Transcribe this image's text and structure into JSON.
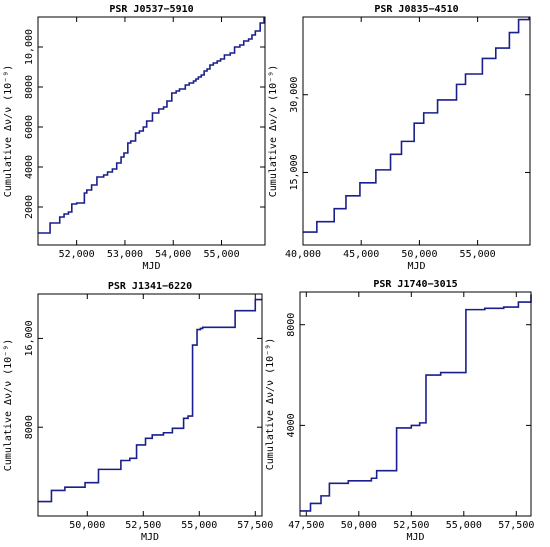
{
  "figure": {
    "line_color": "#1a1f8c"
  },
  "chart_data": [
    {
      "type": "line",
      "step": true,
      "title": "PSR J0537−5910",
      "xlabel": "MJD",
      "ylabel": "Cumulative Δν/ν (10⁻⁹)",
      "xlim": [
        51200,
        55900
      ],
      "ylim": [
        100,
        11500
      ],
      "xticks": [
        52000,
        53000,
        54000,
        55000
      ],
      "xtick_labels": [
        "52,000",
        "53,000",
        "54,000",
        "55,000"
      ],
      "yticks": [
        2000,
        4000,
        6000,
        8000,
        10000
      ],
      "ytick_labels": [
        "2000",
        "4000",
        "6000",
        "8000",
        "10,000"
      ],
      "x": [
        51290,
        51450,
        51650,
        51740,
        51830,
        51900,
        52000,
        52160,
        52210,
        52310,
        52420,
        52560,
        52640,
        52740,
        52830,
        52920,
        52980,
        53060,
        53120,
        53220,
        53300,
        53380,
        53450,
        53570,
        53700,
        53800,
        53870,
        53970,
        54060,
        54130,
        54250,
        54330,
        54420,
        54470,
        54520,
        54580,
        54640,
        54700,
        54760,
        54830,
        54910,
        54980,
        55060,
        55180,
        55270,
        55380,
        55460,
        55560,
        55630,
        55700,
        55800,
        55880
      ],
      "y": [
        700,
        1200,
        1500,
        1650,
        1750,
        2150,
        2200,
        2700,
        2850,
        3100,
        3500,
        3600,
        3750,
        3900,
        4200,
        4500,
        4700,
        5200,
        5300,
        5700,
        5800,
        6000,
        6300,
        6700,
        6900,
        7000,
        7300,
        7700,
        7800,
        7900,
        8100,
        8200,
        8300,
        8400,
        8500,
        8600,
        8800,
        8900,
        9100,
        9200,
        9300,
        9400,
        9600,
        9700,
        10000,
        10100,
        10300,
        10400,
        10600,
        10800,
        11200,
        11500
      ]
    },
    {
      "type": "line",
      "step": true,
      "title": "PSR J0835−4510",
      "xlabel": "MJD",
      "ylabel": "Cumulative Δν/ν (10⁻⁹)",
      "xlim": [
        40000,
        59500
      ],
      "ylim": [
        1000,
        45000
      ],
      "xticks": [
        40000,
        45000,
        50000,
        55000
      ],
      "xtick_labels": [
        "40,000",
        "45,000",
        "50,000",
        "55,000"
      ],
      "yticks": [
        15000,
        30000
      ],
      "ytick_labels": [
        "15,000",
        "30,000"
      ],
      "x": [
        40290,
        41190,
        42680,
        43690,
        44890,
        46260,
        47520,
        48460,
        49550,
        50370,
        51560,
        53190,
        53960,
        55410,
        56560,
        57730,
        58520,
        59420
      ],
      "y": [
        3500,
        5500,
        8000,
        10500,
        13000,
        15500,
        18500,
        21000,
        24500,
        26500,
        29000,
        32000,
        34000,
        37000,
        39000,
        42000,
        44500,
        45000
      ]
    },
    {
      "type": "line",
      "step": true,
      "title": "PSR J1341−6220",
      "xlabel": "MJD",
      "ylabel": "Cumulative Δν/ν (10⁻⁹)",
      "xlim": [
        47800,
        57800
      ],
      "ylim": [
        0,
        20000
      ],
      "xticks": [
        50000,
        52500,
        55000,
        57500
      ],
      "xtick_labels": [
        "50,000",
        "52,500",
        "55,000",
        "57,500"
      ],
      "yticks": [
        8000,
        16000
      ],
      "ytick_labels": [
        "8000",
        "16,000"
      ],
      "x": [
        47900,
        48400,
        49000,
        49900,
        50500,
        51500,
        51900,
        52200,
        52600,
        52900,
        53400,
        53800,
        54300,
        54500,
        54700,
        54900,
        55050,
        55150,
        56600,
        57500,
        57800
      ],
      "y": [
        1300,
        2300,
        2600,
        3000,
        4200,
        5000,
        5200,
        6400,
        7000,
        7300,
        7500,
        7900,
        8800,
        9000,
        15400,
        16800,
        16900,
        17000,
        18500,
        19500,
        19500
      ]
    },
    {
      "type": "line",
      "step": true,
      "title": "PSR J1740−3015",
      "xlabel": "MJD",
      "ylabel": "Cumulative Δν/ν (10⁻⁹)",
      "xlim": [
        47200,
        58200
      ],
      "ylim": [
        400,
        9300
      ],
      "xticks": [
        47500,
        50000,
        52500,
        55000,
        57500
      ],
      "xtick_labels": [
        "47,500",
        "50,000",
        "52,500",
        "55,000",
        "57,500"
      ],
      "yticks": [
        4000,
        8000
      ],
      "ytick_labels": [
        "4000",
        "8000"
      ],
      "x": [
        47300,
        47700,
        48200,
        48600,
        49500,
        50600,
        50850,
        51800,
        52500,
        52900,
        53200,
        53900,
        55100,
        56000,
        56900,
        57600,
        58200
      ],
      "y": [
        600,
        900,
        1200,
        1700,
        1800,
        1900,
        2200,
        3900,
        4000,
        4100,
        6000,
        6100,
        8600,
        8650,
        8700,
        8900,
        9200
      ]
    }
  ]
}
